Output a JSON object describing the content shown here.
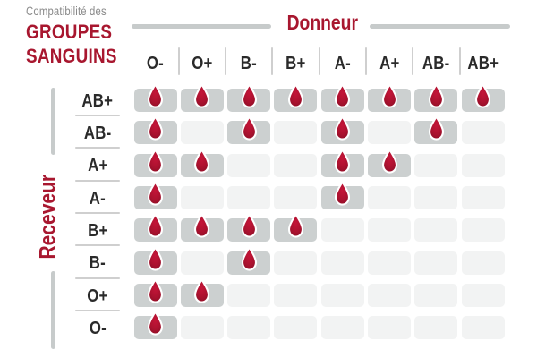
{
  "title": {
    "kicker": "Compatibilité des",
    "line1": "GROUPES",
    "line2": "SANGUINS"
  },
  "axes": {
    "donor_label": "Donneur",
    "receiver_label": "Receveur"
  },
  "chart_data": {
    "type": "table",
    "title": "Compatibilité des groupes sanguins",
    "x_axis_label": "Donneur",
    "y_axis_label": "Receveur",
    "donor_columns": [
      "O-",
      "O+",
      "B-",
      "B+",
      "A-",
      "A+",
      "AB-",
      "AB+"
    ],
    "receiver_rows": [
      "AB+",
      "AB-",
      "A+",
      "A-",
      "B+",
      "B-",
      "O+",
      "O-"
    ],
    "marker_icon": "blood-drop-icon",
    "compatibility": [
      [
        1,
        1,
        1,
        1,
        1,
        1,
        1,
        1
      ],
      [
        1,
        0,
        1,
        0,
        1,
        0,
        1,
        0
      ],
      [
        1,
        1,
        0,
        0,
        1,
        1,
        0,
        0
      ],
      [
        1,
        0,
        0,
        0,
        1,
        0,
        0,
        0
      ],
      [
        1,
        1,
        1,
        1,
        0,
        0,
        0,
        0
      ],
      [
        1,
        0,
        1,
        0,
        0,
        0,
        0,
        0
      ],
      [
        1,
        1,
        0,
        0,
        0,
        0,
        0,
        0
      ],
      [
        1,
        0,
        0,
        0,
        0,
        0,
        0,
        0
      ]
    ]
  },
  "colors": {
    "accent_red": "#A8172F",
    "drop_red_center": "#C41538",
    "drop_red_edge": "#8C0E26",
    "cell_filled": "#CCD0D0",
    "cell_empty": "#F2F3F3",
    "line_gray": "#C7CBCB",
    "sep_gray": "#CFCFCF",
    "text_dark": "#2A2A2A",
    "kicker_gray": "#8A8A8A"
  }
}
